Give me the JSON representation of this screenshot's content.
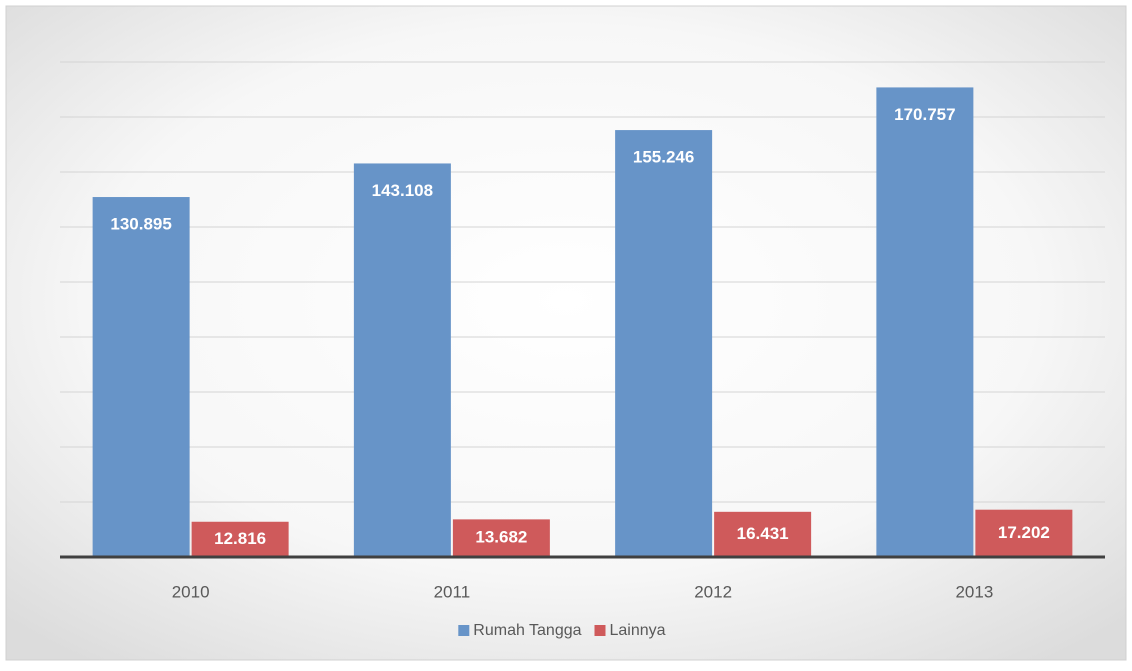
{
  "chart_data": {
    "type": "bar",
    "categories": [
      "2010",
      "2011",
      "2012",
      "2013"
    ],
    "series": [
      {
        "name": "Rumah Tangga",
        "color": "#6794c8",
        "values": [
          130895,
          143108,
          155246,
          170757
        ],
        "value_labels": [
          "130.895",
          "143.108",
          "155.246",
          "170.757"
        ]
      },
      {
        "name": "Lainnya",
        "color": "#cf5a5b",
        "values": [
          12816,
          13682,
          16431,
          17202
        ],
        "value_labels": [
          "12.816",
          "13.682",
          "16.431",
          "17.202"
        ]
      }
    ],
    "ylim": [
      0,
      180000
    ],
    "yticks": [
      0,
      20000,
      40000,
      60000,
      80000,
      100000,
      120000,
      140000,
      160000,
      180000
    ],
    "grid": true,
    "legend": "bottom"
  }
}
